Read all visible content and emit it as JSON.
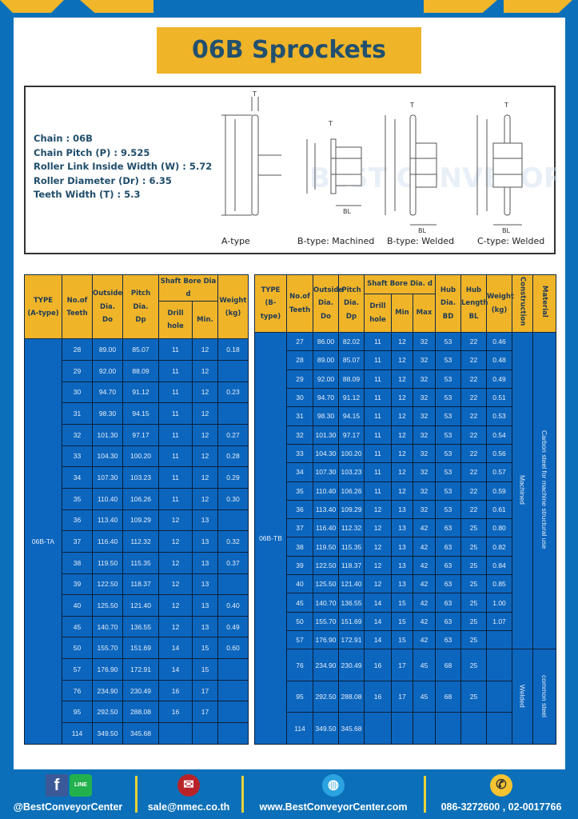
{
  "title": "06B Sprockets",
  "specs": [
    "Chain : 06B",
    "Chain Pitch (P) : 9.525",
    "Roller Link Inside Width (W) : 5.72",
    "Roller Diameter (Dr) : 6.35",
    "Teeth Width (T) : 5.3"
  ],
  "diagram_captions": [
    "A-type",
    "B-type: Machined",
    "B-type: Welded",
    "C-type: Welded"
  ],
  "diagram_labels": {
    "T": "T",
    "Do": "Do",
    "Dp": "Dp",
    "d": "d",
    "BD": "BD",
    "BL": "BL"
  },
  "watermark": "BEST CONVEYOR CENTER",
  "table_a": {
    "headers": {
      "type": [
        "TYPE",
        "(A-type)"
      ],
      "teeth": [
        "No.of",
        "Teeth"
      ],
      "do": [
        "Outside",
        "Dia.",
        "Do"
      ],
      "dp": [
        "Pitch Dia.",
        "Dp"
      ],
      "bore": "Shaft Bore Dia d",
      "drill": "Drill hole",
      "min": "Min.",
      "weight": [
        "Weight",
        "(kg)"
      ]
    },
    "type_label": "06B-TA",
    "rows": [
      [
        "28",
        "89.00",
        "85.07",
        "11",
        "12",
        "0.18"
      ],
      [
        "29",
        "92.00",
        "88.09",
        "11",
        "12",
        ""
      ],
      [
        "30",
        "94.70",
        "91.12",
        "11",
        "12",
        "0.23"
      ],
      [
        "31",
        "98.30",
        "94.15",
        "11",
        "12",
        ""
      ],
      [
        "32",
        "101.30",
        "97.17",
        "11",
        "12",
        "0.27"
      ],
      [
        "33",
        "104.30",
        "100.20",
        "11",
        "12",
        "0.28"
      ],
      [
        "34",
        "107.30",
        "103.23",
        "11",
        "12",
        "0.29"
      ],
      [
        "35",
        "110.40",
        "106.26",
        "11",
        "12",
        "0.30"
      ],
      [
        "36",
        "113.40",
        "109.29",
        "12",
        "13",
        ""
      ],
      [
        "37",
        "116.40",
        "112.32",
        "12",
        "13",
        "0.32"
      ],
      [
        "38",
        "119.50",
        "115.35",
        "12",
        "13",
        "0.37"
      ],
      [
        "39",
        "122.50",
        "118.37",
        "12",
        "13",
        ""
      ],
      [
        "40",
        "125.50",
        "121.40",
        "12",
        "13",
        "0.40"
      ],
      [
        "45",
        "140.70",
        "136.55",
        "12",
        "13",
        "0.49"
      ],
      [
        "50",
        "155.70",
        "151.69",
        "14",
        "15",
        "0.60"
      ],
      [
        "57",
        "176.90",
        "172.91",
        "14",
        "15",
        ""
      ],
      [
        "76",
        "234.90",
        "230.49",
        "16",
        "17",
        ""
      ],
      [
        "95",
        "292.50",
        "288.08",
        "16",
        "17",
        ""
      ],
      [
        "114",
        "349.50",
        "345.68",
        "",
        "",
        ""
      ]
    ]
  },
  "table_b": {
    "headers": {
      "type": [
        "TYPE",
        "(B-type)"
      ],
      "teeth": [
        "No.of",
        "Teeth"
      ],
      "do": [
        "Outside",
        "Dia.",
        "Do"
      ],
      "dp": [
        "Pitch",
        "Dia.",
        "Dp"
      ],
      "bore": "Shaft Bore Dia. d",
      "drill": "Drill hole",
      "min": "Min",
      "max": "Max",
      "bd": [
        "Hub",
        "Dia.",
        "BD"
      ],
      "bl": [
        "Hub",
        "Length",
        "BL"
      ],
      "weight": [
        "Weight",
        "(kg)"
      ],
      "construction": "Construction",
      "material": "Material"
    },
    "type_label": "06B-TB",
    "construction_groups": [
      {
        "label": "Machined",
        "rows": 17
      },
      {
        "label": "Welded",
        "rows": 3
      }
    ],
    "material_groups": [
      {
        "label": "Carbon steel for machine structural use",
        "rows": 17
      },
      {
        "label": "common steel",
        "rows": 3
      }
    ],
    "rows": [
      [
        "27",
        "86.00",
        "82.02",
        "11",
        "12",
        "32",
        "53",
        "22",
        "0.46"
      ],
      [
        "28",
        "89.00",
        "85.07",
        "11",
        "12",
        "32",
        "53",
        "22",
        "0.48"
      ],
      [
        "29",
        "92.00",
        "88.09",
        "11",
        "12",
        "32",
        "53",
        "22",
        "0.49"
      ],
      [
        "30",
        "94.70",
        "91.12",
        "11",
        "12",
        "32",
        "53",
        "22",
        "0.51"
      ],
      [
        "31",
        "98.30",
        "94.15",
        "11",
        "12",
        "32",
        "53",
        "22",
        "0.53"
      ],
      [
        "32",
        "101.30",
        "97.17",
        "11",
        "12",
        "32",
        "53",
        "22",
        "0.54"
      ],
      [
        "33",
        "104.30",
        "100.20",
        "11",
        "12",
        "32",
        "53",
        "22",
        "0.56"
      ],
      [
        "34",
        "107.30",
        "103.23",
        "11",
        "12",
        "32",
        "53",
        "22",
        "0.57"
      ],
      [
        "35",
        "110.40",
        "106.26",
        "11",
        "12",
        "32",
        "53",
        "22",
        "0.59"
      ],
      [
        "36",
        "113.40",
        "109.29",
        "12",
        "13",
        "32",
        "53",
        "22",
        "0.61"
      ],
      [
        "37",
        "116.40",
        "112.32",
        "12",
        "13",
        "42",
        "63",
        "25",
        "0.80"
      ],
      [
        "38",
        "119.50",
        "115.35",
        "12",
        "13",
        "42",
        "63",
        "25",
        "0.82"
      ],
      [
        "39",
        "122.50",
        "118.37",
        "12",
        "13",
        "42",
        "63",
        "25",
        "0.84"
      ],
      [
        "40",
        "125.50",
        "121.40",
        "12",
        "13",
        "42",
        "63",
        "25",
        "0.85"
      ],
      [
        "45",
        "140.70",
        "136.55",
        "14",
        "15",
        "42",
        "63",
        "25",
        "1.00"
      ],
      [
        "50",
        "155.70",
        "151.69",
        "14",
        "15",
        "42",
        "63",
        "25",
        "1.07"
      ],
      [
        "57",
        "176.90",
        "172.91",
        "14",
        "15",
        "42",
        "63",
        "25",
        ""
      ],
      [
        "76",
        "234.90",
        "230.49",
        "16",
        "17",
        "45",
        "68",
        "25",
        ""
      ],
      [
        "95",
        "292.50",
        "288.08",
        "16",
        "17",
        "45",
        "68",
        "25",
        ""
      ],
      [
        "114",
        "349.50",
        "345.68",
        "",
        "",
        "",
        "",
        "",
        ""
      ]
    ]
  },
  "footer": {
    "social": "@BestConveyorCenter",
    "social_icons": [
      "facebook-icon",
      "line-icon"
    ],
    "line_badge": "LINE",
    "email": "sale@nmec.co.th",
    "website": "www.BestConveyorCenter.com",
    "phone": "086-3272600 , 02-0017766"
  },
  "colors": {
    "brand_blue": "#0b70b9",
    "accent_yellow": "#f0b429",
    "table_blue": "#0c66be",
    "title_text": "#22506e"
  }
}
